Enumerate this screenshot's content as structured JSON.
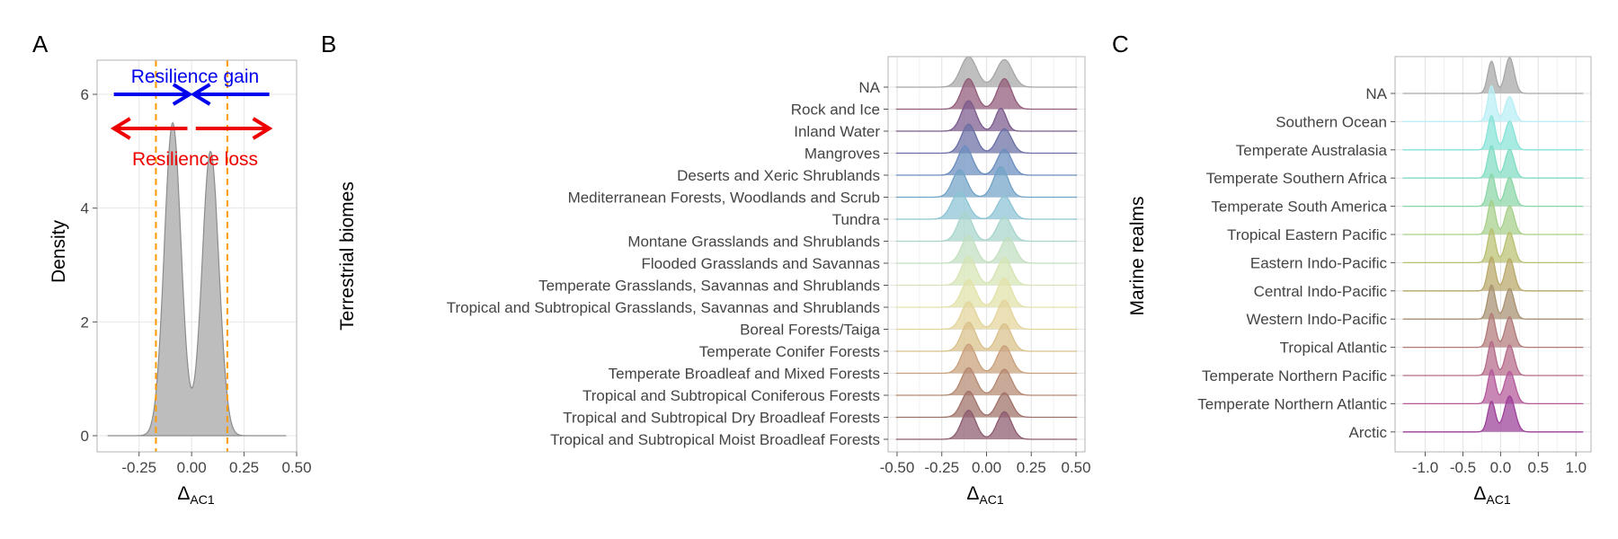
{
  "figure": {
    "panels": [
      {
        "letter": "A",
        "ylabel": "Density",
        "xlabel_main": "Δ",
        "xlabel_sub": "AC1"
      },
      {
        "letter": "B",
        "ylabel": "Terrestrial biomes",
        "xlabel_main": "Δ",
        "xlabel_sub": "AC1"
      },
      {
        "letter": "C",
        "ylabel": "Marine realms",
        "xlabel_main": "Δ",
        "xlabel_sub": "AC1"
      }
    ],
    "annotations": {
      "gain": "Resilience gain",
      "loss": "Resilience loss"
    }
  },
  "colors": {
    "grid": "#e6e6e6",
    "panel_border": "#b3b3b3",
    "density_fill": "#bdbdbd",
    "density_line": "#8c8c8c",
    "threshold": "#ff9900",
    "gain": "#0000ee",
    "loss": "#ee0000"
  },
  "chart_data": [
    {
      "type": "area",
      "panel": "A",
      "xlim": [
        -0.45,
        0.5
      ],
      "ylim": [
        0,
        6.6
      ],
      "x_ticks": [
        -0.25,
        0,
        0.25,
        0.5
      ],
      "x_tick_labels": [
        "-0.25",
        "0.00",
        "0.25",
        "0.50"
      ],
      "y_ticks": [
        0,
        2,
        4,
        6
      ],
      "y_tick_labels": [
        "0",
        "2",
        "4",
        "6"
      ],
      "grid": true,
      "thresholds": [
        -0.17,
        0.17
      ],
      "series": [
        {
          "peaks": [
            {
              "center": -0.09,
              "height": 5.5,
              "width": 0.04
            },
            {
              "center": 0.09,
              "height": 5.0,
              "width": 0.04
            }
          ]
        }
      ]
    },
    {
      "type": "ridgeline",
      "panel": "B",
      "xlim": [
        -0.55,
        0.55
      ],
      "x_ticks": [
        -0.5,
        -0.25,
        0,
        0.25,
        0.5
      ],
      "x_tick_labels": [
        "-0.50",
        "-0.25",
        "0.00",
        "0.25",
        "0.50"
      ],
      "grid": true,
      "categories": [
        "NA",
        "Rock and Ice",
        "Inland Water",
        "Mangroves",
        "Deserts and Xeric Shrublands",
        "Mediterranean Forests, Woodlands and Scrub",
        "Tundra",
        "Montane Grasslands and Shrublands",
        "Flooded Grasslands and Savannas",
        "Temperate Grasslands, Savannas and Shrublands",
        "Tropical and Subtropical Grasslands, Savannas and Shrublands",
        "Boreal Forests/Taiga",
        "Temperate Conifer Forests",
        "Temperate Broadleaf and Mixed Forests",
        "Tropical and Subtropical Coniferous Forests",
        "Tropical and Subtropical Dry Broadleaf Forests",
        "Tropical and Subtropical Moist Broadleaf Forests"
      ],
      "colors": [
        "#a6a6a6",
        "#915a78",
        "#7a5a8c",
        "#6a6fa3",
        "#6a8dbf",
        "#72a3c7",
        "#8cc4d4",
        "#a8d4cc",
        "#c2dfc0",
        "#d6e4b4",
        "#e2e2a8",
        "#e3d49a",
        "#d9c08a",
        "#c99f7a",
        "#b48870",
        "#a07068",
        "#8c5a6e"
      ],
      "ridges": [
        {
          "centers": [
            -0.1,
            0.1
          ],
          "heights": [
            1.0,
            0.9
          ],
          "widths": [
            0.045,
            0.045
          ]
        },
        {
          "centers": [
            -0.1,
            0.1
          ],
          "heights": [
            1.0,
            1.0
          ],
          "widths": [
            0.04,
            0.04
          ]
        },
        {
          "centers": [
            -0.1,
            0.08
          ],
          "heights": [
            1.0,
            0.75
          ],
          "widths": [
            0.04,
            0.03
          ]
        },
        {
          "centers": [
            -0.1,
            0.1
          ],
          "heights": [
            0.95,
            0.8
          ],
          "widths": [
            0.04,
            0.04
          ]
        },
        {
          "centers": [
            -0.12,
            0.1
          ],
          "heights": [
            0.95,
            0.85
          ],
          "widths": [
            0.04,
            0.04
          ]
        },
        {
          "centers": [
            -0.15,
            0.08
          ],
          "heights": [
            0.9,
            1.0
          ],
          "widths": [
            0.04,
            0.04
          ]
        },
        {
          "centers": [
            -0.15,
            0.1
          ],
          "heights": [
            0.9,
            0.75
          ],
          "widths": [
            0.045,
            0.04
          ]
        },
        {
          "centers": [
            -0.12,
            0.1
          ],
          "heights": [
            0.95,
            0.8
          ],
          "widths": [
            0.04,
            0.04
          ]
        },
        {
          "centers": [
            -0.1,
            0.12
          ],
          "heights": [
            0.9,
            0.85
          ],
          "widths": [
            0.04,
            0.04
          ]
        },
        {
          "centers": [
            -0.1,
            0.1
          ],
          "heights": [
            0.95,
            0.9
          ],
          "widths": [
            0.04,
            0.04
          ]
        },
        {
          "centers": [
            -0.1,
            0.1
          ],
          "heights": [
            0.9,
            0.95
          ],
          "widths": [
            0.04,
            0.04
          ]
        },
        {
          "centers": [
            -0.1,
            0.1
          ],
          "heights": [
            0.9,
            0.95
          ],
          "widths": [
            0.04,
            0.04
          ]
        },
        {
          "centers": [
            -0.1,
            0.1
          ],
          "heights": [
            0.95,
            0.9
          ],
          "widths": [
            0.04,
            0.04
          ]
        },
        {
          "centers": [
            -0.1,
            0.1
          ],
          "heights": [
            0.95,
            0.9
          ],
          "widths": [
            0.04,
            0.04
          ]
        },
        {
          "centers": [
            -0.1,
            0.1
          ],
          "heights": [
            0.9,
            0.85
          ],
          "widths": [
            0.04,
            0.04
          ]
        },
        {
          "centers": [
            -0.1,
            0.1
          ],
          "heights": [
            0.85,
            0.8
          ],
          "widths": [
            0.04,
            0.04
          ]
        },
        {
          "centers": [
            -0.1,
            0.1
          ],
          "heights": [
            0.95,
            0.9
          ],
          "widths": [
            0.04,
            0.04
          ]
        }
      ]
    },
    {
      "type": "ridgeline",
      "panel": "C",
      "xlim": [
        -1.4,
        1.2
      ],
      "x_ticks": [
        -1.0,
        -0.5,
        0,
        0.5,
        1.0
      ],
      "x_tick_labels": [
        "-1.0",
        "-0.5",
        "0.0",
        "0.5",
        "1.0"
      ],
      "grid": true,
      "categories": [
        "NA",
        "Southern Ocean",
        "Temperate Australasia",
        "Temperate Southern Africa",
        "Temperate South America",
        "Tropical Eastern Pacific",
        "Eastern Indo-Pacific",
        "Central Indo-Pacific",
        "Western Indo-Pacific",
        "Tropical Atlantic",
        "Temperate Northern Pacific",
        "Temperate Northern Atlantic",
        "Arctic"
      ],
      "colors": [
        "#a6a6a6",
        "#b8eef5",
        "#86e3d8",
        "#7fdcc4",
        "#8ad6a6",
        "#a6d08a",
        "#b9c070",
        "#b8a868",
        "#a89070",
        "#b07a78",
        "#b46a88",
        "#b4599a",
        "#9b3f98"
      ],
      "ridges": [
        {
          "centers": [
            -0.12,
            0.12
          ],
          "heights": [
            0.9,
            1.0
          ],
          "widths": [
            0.05,
            0.06
          ]
        },
        {
          "centers": [
            -0.12,
            0.12
          ],
          "heights": [
            1.0,
            0.7
          ],
          "widths": [
            0.05,
            0.06
          ]
        },
        {
          "centers": [
            -0.12,
            0.12
          ],
          "heights": [
            0.95,
            0.8
          ],
          "widths": [
            0.05,
            0.06
          ]
        },
        {
          "centers": [
            -0.12,
            0.12
          ],
          "heights": [
            0.9,
            0.8
          ],
          "widths": [
            0.05,
            0.06
          ]
        },
        {
          "centers": [
            -0.12,
            0.12
          ],
          "heights": [
            0.9,
            0.8
          ],
          "widths": [
            0.05,
            0.06
          ]
        },
        {
          "centers": [
            -0.12,
            0.12
          ],
          "heights": [
            0.95,
            0.8
          ],
          "widths": [
            0.05,
            0.06
          ]
        },
        {
          "centers": [
            -0.12,
            0.12
          ],
          "heights": [
            0.95,
            0.85
          ],
          "widths": [
            0.05,
            0.06
          ]
        },
        {
          "centers": [
            -0.12,
            0.12
          ],
          "heights": [
            0.95,
            0.9
          ],
          "widths": [
            0.05,
            0.06
          ]
        },
        {
          "centers": [
            -0.12,
            0.12
          ],
          "heights": [
            0.95,
            0.85
          ],
          "widths": [
            0.05,
            0.06
          ]
        },
        {
          "centers": [
            -0.12,
            0.12
          ],
          "heights": [
            0.95,
            0.85
          ],
          "widths": [
            0.05,
            0.06
          ]
        },
        {
          "centers": [
            -0.12,
            0.12
          ],
          "heights": [
            0.95,
            0.85
          ],
          "widths": [
            0.05,
            0.06
          ]
        },
        {
          "centers": [
            -0.12,
            0.12
          ],
          "heights": [
            0.95,
            0.9
          ],
          "widths": [
            0.05,
            0.07
          ]
        },
        {
          "centers": [
            -0.12,
            0.12
          ],
          "heights": [
            0.85,
            1.0
          ],
          "widths": [
            0.05,
            0.07
          ]
        }
      ]
    }
  ]
}
